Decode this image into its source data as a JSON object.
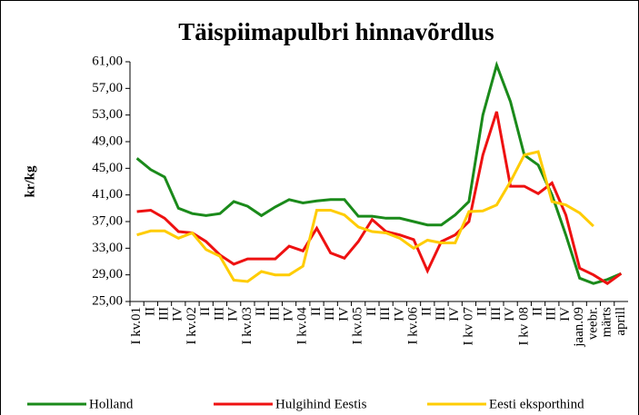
{
  "chart_data": {
    "type": "line",
    "title": "Täispiimapulbri hinnavõrdlus",
    "y_label": "kr/kg",
    "categories": [
      "I kv.01",
      "II",
      "III",
      "IV",
      "I kv.02",
      "II",
      "III",
      "IV",
      "I kv.03",
      "II",
      "III",
      "IV",
      "I kv.04",
      "II",
      "III",
      "IV",
      "I kv.05",
      "II",
      "III",
      "IV",
      "I kv.06",
      "II",
      "III",
      "IV",
      "I kv 07",
      "II",
      "III",
      "IV",
      "I kv 08",
      "II",
      "III",
      "IV",
      "jaan.09",
      "veebr.",
      "märts",
      "aprill"
    ],
    "series": [
      {
        "name": "Holland",
        "color": "#1a8a1a",
        "values": [
          46.5,
          44.8,
          43.7,
          39,
          38.2,
          37.9,
          38.2,
          40,
          39.3,
          37.9,
          39.2,
          40.3,
          39.8,
          40.1,
          40.3,
          40.3,
          37.8,
          37.8,
          37.5,
          37.5,
          37,
          36.5,
          36.5,
          38,
          40,
          53,
          60.5,
          55,
          47,
          45.5,
          41,
          35,
          28.5,
          27.7,
          28.3,
          29.2
        ]
      },
      {
        "name": "Hulgihind Eestis",
        "color": "#ee1111",
        "values": [
          38.5,
          38.7,
          37.5,
          35.5,
          35.3,
          34,
          32,
          30.6,
          31.4,
          31.4,
          31.4,
          33.3,
          32.6,
          36,
          32.3,
          31.5,
          34,
          37.3,
          35.5,
          35,
          34.3,
          29.6,
          34,
          35,
          37,
          47,
          53.5,
          42.3,
          42.3,
          41.2,
          42.8,
          38,
          30,
          29,
          27.7,
          29.2
        ]
      },
      {
        "name": "Eesti eksporthind",
        "color": "#ffcc00",
        "values": [
          35,
          35.6,
          35.6,
          34.5,
          35.3,
          32.8,
          31.8,
          28.2,
          28,
          29.5,
          29,
          29,
          30.3,
          38.7,
          38.7,
          38,
          36.2,
          35.5,
          35.3,
          34.5,
          33,
          34.2,
          33.8,
          33.8,
          38.5,
          38.6,
          39.5,
          43,
          47,
          47.5,
          40,
          39.5,
          38.3,
          36.3,
          null,
          null
        ]
      }
    ],
    "ylim": [
      25,
      61
    ],
    "yticks": [
      {
        "value": 25,
        "label": "25,00"
      },
      {
        "value": 29,
        "label": "29,00"
      },
      {
        "value": 33,
        "label": "33,00"
      },
      {
        "value": 37,
        "label": "37,00"
      },
      {
        "value": 41,
        "label": "41,00"
      },
      {
        "value": 45,
        "label": "45,00"
      },
      {
        "value": 49,
        "label": "49,00"
      },
      {
        "value": 53,
        "label": "53,00"
      },
      {
        "value": 57,
        "label": "57,00"
      },
      {
        "value": 61,
        "label": "61,00"
      }
    ],
    "legend": "bottom"
  }
}
